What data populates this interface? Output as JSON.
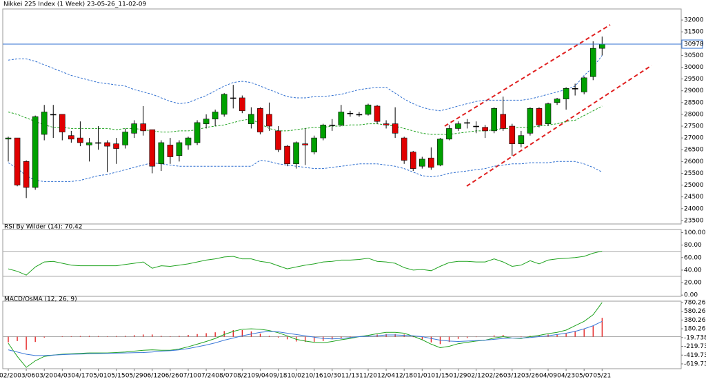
{
  "chart_data": [
    {
      "type": "candlestick",
      "title": "Nikkei 225 Index (1 Week) 23-05-26_11-02-09",
      "categories": [
        "02/20",
        null,
        "03/06",
        null,
        "03/20",
        null,
        "04/03",
        null,
        "04/17",
        null,
        "05/01",
        null,
        "05/15",
        null,
        "05/29",
        null,
        "06/12",
        null,
        "06/26",
        null,
        "07/10",
        null,
        "07/24",
        null,
        "08/07",
        null,
        "08/21",
        null,
        "09/04",
        null,
        "09/18",
        null,
        "10/02",
        null,
        "10/16",
        null,
        "10/30",
        null,
        "11/13",
        null,
        "11/20",
        null,
        "12/04",
        null,
        "12/18",
        null,
        "01/01",
        null,
        "01/15",
        null,
        "01/29",
        null,
        "02/12",
        null,
        "02/26",
        null,
        "03/12",
        null,
        "03/26",
        null,
        "04/09",
        null,
        "04/23",
        null,
        "05/07",
        null,
        "05/21"
      ],
      "open": [
        26950,
        27000,
        26000,
        24900,
        27150,
        28000,
        28000,
        27100,
        27000,
        26700,
        26800,
        26800,
        26750,
        26700,
        27200,
        27600,
        27350,
        25900,
        26700,
        26250,
        26700,
        26800,
        27600,
        27800,
        28000,
        28700,
        28700,
        27600,
        28250,
        28000,
        27300,
        26650,
        25900,
        26750,
        26400,
        27000,
        27550,
        27550,
        28050,
        28000,
        28000,
        28350,
        27600,
        27600,
        27000,
        26400,
        25800,
        26150,
        25850,
        26950,
        27400,
        27650,
        27500,
        27450,
        27300,
        28000,
        27500,
        26750,
        27200,
        28250,
        27600,
        28500,
        28650,
        29100,
        28950,
        29600,
        30800
      ],
      "close": [
        27000,
        25000,
        24900,
        27900,
        28100,
        28000,
        27250,
        26950,
        26800,
        26800,
        26800,
        26650,
        26550,
        27250,
        27600,
        27300,
        25800,
        26800,
        26200,
        26800,
        27000,
        27650,
        27800,
        28100,
        28850,
        28700,
        28150,
        28000,
        27250,
        27500,
        26500,
        25900,
        26800,
        26700,
        27000,
        27550,
        27550,
        28100,
        28050,
        28000,
        28400,
        27700,
        27550,
        27200,
        26050,
        25700,
        26100,
        25750,
        26950,
        27400,
        27600,
        27650,
        27500,
        27300,
        28250,
        27400,
        26750,
        27100,
        28250,
        27550,
        28450,
        28650,
        29100,
        29100,
        29550,
        30800,
        30978
      ],
      "high": [
        27050,
        27000,
        26050,
        27950,
        28400,
        28400,
        28000,
        27300,
        27700,
        27000,
        27500,
        26900,
        27000,
        27400,
        27750,
        28350,
        27350,
        26900,
        27000,
        26900,
        27050,
        27750,
        28000,
        28200,
        28900,
        29250,
        28800,
        28300,
        28300,
        28500,
        27500,
        26700,
        26850,
        27400,
        27100,
        27600,
        27800,
        28400,
        28150,
        28100,
        28450,
        28400,
        27750,
        28300,
        27050,
        26450,
        26200,
        26600,
        27000,
        27550,
        27700,
        27800,
        27700,
        27550,
        28300,
        28750,
        27600,
        27300,
        28300,
        28300,
        28500,
        28700,
        29150,
        29300,
        29600,
        31100,
        31300
      ],
      "low": [
        26000,
        24950,
        24450,
        24800,
        26900,
        27000,
        26900,
        26800,
        26650,
        26000,
        26500,
        25550,
        25900,
        26550,
        27000,
        27100,
        25500,
        25600,
        25900,
        26000,
        26500,
        26700,
        27400,
        27500,
        27900,
        28250,
        28050,
        27400,
        27150,
        27300,
        26400,
        25800,
        25700,
        25850,
        26300,
        26900,
        27300,
        27500,
        27900,
        27900,
        27950,
        27600,
        27400,
        27000,
        25900,
        25600,
        25700,
        25650,
        25800,
        26900,
        27300,
        27400,
        27200,
        27000,
        27200,
        27300,
        26250,
        26600,
        27100,
        27450,
        27500,
        28400,
        28200,
        28800,
        28850,
        29450,
        30500
      ],
      "bull_color": "#00a000",
      "bear_color": "#e00000",
      "series": [
        {
          "color": "#2f6fd0",
          "dashed": true,
          "values": [
            30300,
            30350,
            30350,
            30250,
            30100,
            29950,
            29800,
            29650,
            29550,
            29450,
            29350,
            29300,
            29250,
            29200,
            29050,
            28950,
            28850,
            28700,
            28550,
            28450,
            28500,
            28650,
            28800,
            29000,
            29200,
            29350,
            29400,
            29350,
            29200,
            29050,
            28900,
            28750,
            28700,
            28700,
            28750,
            28750,
            28800,
            28850,
            28950,
            29050,
            29100,
            29150,
            29150,
            28900,
            28650,
            28450,
            28300,
            28200,
            28150,
            28250,
            28350,
            28450,
            28550,
            28600,
            28600,
            28600,
            28600,
            28600,
            28650,
            28750,
            28850,
            28950,
            29050,
            29200,
            29650,
            30000,
            30500
          ]
        },
        {
          "color": "#1fa31f",
          "dashed": true,
          "values": [
            28100,
            28000,
            27850,
            27700,
            27550,
            27450,
            27450,
            27400,
            27400,
            27400,
            27400,
            27400,
            27350,
            27400,
            27400,
            27350,
            27300,
            27250,
            27250,
            27300,
            27300,
            27350,
            27450,
            27500,
            27550,
            27650,
            27750,
            27800,
            27600,
            27400,
            27300,
            27300,
            27350,
            27400,
            27450,
            27450,
            27500,
            27500,
            27550,
            27550,
            27600,
            27600,
            27550,
            27500,
            27400,
            27300,
            27200,
            27150,
            27150,
            27150,
            27200,
            27250,
            27300,
            27300,
            27350,
            27400,
            27400,
            27450,
            27450,
            27500,
            27550,
            27600,
            27700,
            27750,
            27950,
            28150,
            28350
          ]
        },
        {
          "color": "#2f6fd0",
          "dashed": true,
          "values": [
            25950,
            25700,
            25400,
            25200,
            25150,
            25150,
            25150,
            25150,
            25200,
            25300,
            25400,
            25450,
            25550,
            25650,
            25750,
            25850,
            25950,
            25900,
            25850,
            25800,
            25800,
            25800,
            25800,
            25800,
            25800,
            25800,
            25800,
            25800,
            26050,
            26000,
            25900,
            25850,
            25800,
            25750,
            25700,
            25700,
            25750,
            25800,
            25850,
            25900,
            25900,
            25900,
            25850,
            25800,
            25700,
            25550,
            25400,
            25350,
            25400,
            25500,
            25550,
            25600,
            25650,
            25700,
            25800,
            25850,
            25900,
            25900,
            25950,
            25950,
            25950,
            26000,
            26000,
            26000,
            25900,
            25750,
            25550
          ]
        }
      ],
      "last_price": 30978,
      "last_price_color": "#2f6fd0",
      "ylim": [
        23350,
        32470
      ],
      "yticks": [
        23500,
        24000,
        24500,
        25000,
        25500,
        26000,
        26500,
        27000,
        27500,
        28000,
        28500,
        29000,
        29500,
        30000,
        30500,
        31000,
        31500,
        32000
      ]
    },
    {
      "type": "line",
      "title": "RSI By Wilder (14): 70.42",
      "series": [
        {
          "color": "#1fa31f",
          "values": [
            42,
            38,
            32,
            45,
            53,
            54,
            51,
            48,
            47,
            47,
            47,
            47,
            47,
            49,
            51,
            53,
            43,
            47,
            46,
            48,
            50,
            53,
            56,
            58,
            61,
            62,
            58,
            58,
            54,
            52,
            47,
            42,
            45,
            48,
            50,
            53,
            54,
            56,
            56,
            57,
            59,
            54,
            53,
            51,
            44,
            40,
            41,
            39,
            46,
            52,
            54,
            54,
            53,
            53,
            58,
            53,
            46,
            48,
            55,
            50,
            56,
            58,
            59,
            60,
            62,
            67,
            70.42
          ]
        }
      ],
      "levels": [
        70,
        30
      ],
      "ylim": [
        -2,
        105
      ],
      "yticks": [
        {
          "value": 0,
          "label": "0.00"
        },
        {
          "value": 20,
          "label": "20.00"
        },
        {
          "value": 40,
          "label": "40.00"
        },
        {
          "value": 60,
          "label": "60.00"
        },
        {
          "value": 80,
          "label": "80.00"
        },
        {
          "value": 100,
          "label": "100.00"
        }
      ]
    },
    {
      "type": "macd",
      "title": "MACD/OsMA (12, 26, 9)",
      "histogram": {
        "color": "#e00000",
        "values": [
          -130,
          -100,
          -300,
          -120,
          -20,
          0,
          10,
          10,
          15,
          20,
          15,
          10,
          15,
          20,
          35,
          50,
          50,
          20,
          10,
          20,
          40,
          60,
          80,
          100,
          130,
          150,
          150,
          120,
          70,
          20,
          -20,
          -60,
          -110,
          -120,
          -120,
          -100,
          -60,
          -30,
          -20,
          0,
          20,
          50,
          60,
          60,
          50,
          -10,
          -70,
          -130,
          -170,
          -120,
          -50,
          -30,
          -10,
          0,
          30,
          40,
          0,
          -10,
          20,
          30,
          50,
          50,
          70,
          130,
          170,
          250,
          430
        ]
      },
      "series": [
        {
          "color": "#1fa31f",
          "values": [
            -150,
            -450,
            -700,
            -550,
            -450,
            -420,
            -400,
            -390,
            -380,
            -370,
            -370,
            -370,
            -360,
            -350,
            -330,
            -310,
            -300,
            -310,
            -310,
            -280,
            -230,
            -170,
            -110,
            -40,
            50,
            120,
            170,
            180,
            170,
            140,
            90,
            20,
            -60,
            -100,
            -130,
            -140,
            -110,
            -70,
            -40,
            0,
            30,
            70,
            100,
            100,
            80,
            10,
            -70,
            -170,
            -250,
            -220,
            -160,
            -130,
            -100,
            -80,
            -30,
            0,
            -30,
            -40,
            0,
            30,
            70,
            100,
            150,
            250,
            350,
            500,
            780
          ]
        },
        {
          "color": "#3a78d8",
          "values": [
            -300,
            -350,
            -400,
            -430,
            -430,
            -420,
            -410,
            -400,
            -395,
            -390,
            -385,
            -380,
            -375,
            -370,
            -365,
            -360,
            -350,
            -330,
            -320,
            -300,
            -270,
            -230,
            -190,
            -140,
            -80,
            -30,
            20,
            60,
            100,
            120,
            110,
            80,
            50,
            20,
            -10,
            -40,
            -50,
            -40,
            -20,
            0,
            10,
            20,
            40,
            40,
            30,
            20,
            0,
            -40,
            -80,
            -100,
            -110,
            -100,
            -90,
            -80,
            -60,
            -40,
            -30,
            -30,
            -20,
            0,
            20,
            50,
            80,
            120,
            180,
            250,
            350
          ]
        }
      ],
      "ylim": [
        -730,
        810
      ],
      "yticks": [
        -619.736,
        -419.736,
        -219.736,
        -19.7381,
        180.2618,
        380.2618,
        580.2618,
        780.2618
      ]
    }
  ]
}
